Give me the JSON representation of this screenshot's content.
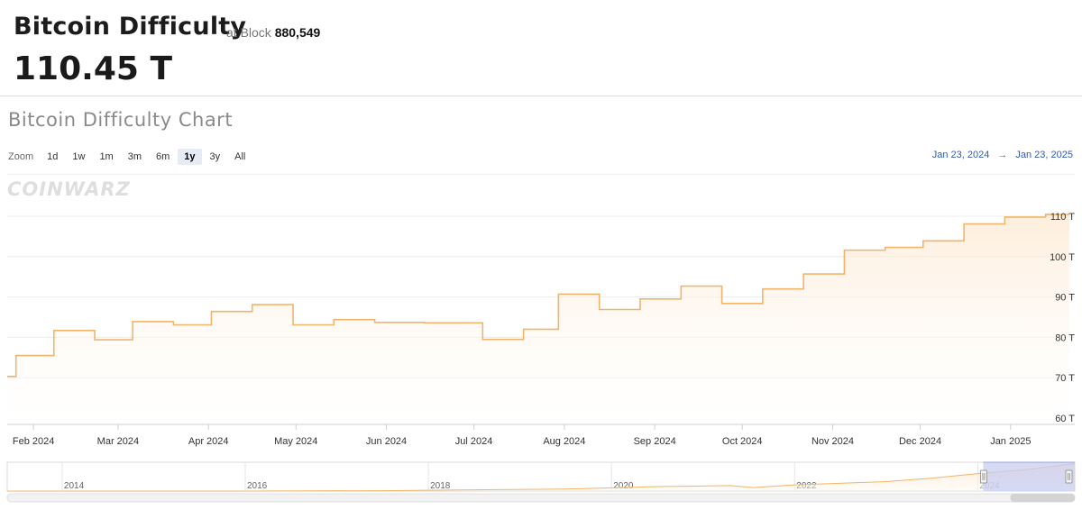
{
  "header": {
    "title": "Bitcoin Difficulty",
    "at_block_label": "at Block",
    "block_number": "880,549",
    "current_value": "110.45 T"
  },
  "chart_section": {
    "title": "Bitcoin Difficulty Chart",
    "watermark": "COINWARZ",
    "zoom": {
      "label": "Zoom",
      "options": [
        "1d",
        "1w",
        "1m",
        "3m",
        "6m",
        "1y",
        "3y",
        "All"
      ],
      "selected": "1y"
    },
    "range": {
      "from": "Jan 23, 2024",
      "arrow": "→",
      "to": "Jan 23, 2025"
    }
  },
  "colors": {
    "line": "#f0b56a",
    "area_top": "#fde8d0",
    "area_bottom": "#ffffff",
    "accent": "#335cad",
    "navigator_mask": "#c8cdf2"
  },
  "chart_data": {
    "type": "area",
    "title": "Bitcoin Difficulty Chart",
    "xlabel": "",
    "ylabel": "",
    "x_range": [
      "2024-01-23",
      "2025-01-23"
    ],
    "ylim": [
      60,
      110
    ],
    "y_ticks": [
      60,
      70,
      80,
      90,
      100,
      110
    ],
    "y_tick_labels": [
      "60 T",
      "70 T",
      "80 T",
      "90 T",
      "100 T",
      "110 T"
    ],
    "x_ticks": [
      {
        "date": "2024-02-01",
        "label": "Feb 2024"
      },
      {
        "date": "2024-03-01",
        "label": "Mar 2024"
      },
      {
        "date": "2024-04-01",
        "label": "Apr 2024"
      },
      {
        "date": "2024-05-01",
        "label": "May 2024"
      },
      {
        "date": "2024-06-01",
        "label": "Jun 2024"
      },
      {
        "date": "2024-07-01",
        "label": "Jul 2024"
      },
      {
        "date": "2024-08-01",
        "label": "Aug 2024"
      },
      {
        "date": "2024-09-01",
        "label": "Sep 2024"
      },
      {
        "date": "2024-10-01",
        "label": "Oct 2024"
      },
      {
        "date": "2024-11-01",
        "label": "Nov 2024"
      },
      {
        "date": "2024-12-01",
        "label": "Dec 2024"
      },
      {
        "date": "2025-01-01",
        "label": "Jan 2025"
      }
    ],
    "grid": true,
    "series": [
      {
        "points": [
          {
            "date": "2024-01-23",
            "value": 70.3
          },
          {
            "date": "2024-01-26",
            "value": 75.5
          },
          {
            "date": "2024-02-08",
            "value": 81.7
          },
          {
            "date": "2024-02-22",
            "value": 79.4
          },
          {
            "date": "2024-03-06",
            "value": 83.9
          },
          {
            "date": "2024-03-20",
            "value": 83.1
          },
          {
            "date": "2024-04-02",
            "value": 86.4
          },
          {
            "date": "2024-04-16",
            "value": 88.1
          },
          {
            "date": "2024-04-30",
            "value": 83.1
          },
          {
            "date": "2024-05-14",
            "value": 84.4
          },
          {
            "date": "2024-05-28",
            "value": 83.7
          },
          {
            "date": "2024-06-14",
            "value": 83.6
          },
          {
            "date": "2024-07-04",
            "value": 79.5
          },
          {
            "date": "2024-07-18",
            "value": 82.0
          },
          {
            "date": "2024-07-30",
            "value": 90.7
          },
          {
            "date": "2024-08-13",
            "value": 86.9
          },
          {
            "date": "2024-08-27",
            "value": 89.5
          },
          {
            "date": "2024-09-10",
            "value": 92.7
          },
          {
            "date": "2024-09-24",
            "value": 88.4
          },
          {
            "date": "2024-10-08",
            "value": 92.0
          },
          {
            "date": "2024-10-22",
            "value": 95.7
          },
          {
            "date": "2024-11-05",
            "value": 101.6
          },
          {
            "date": "2024-11-19",
            "value": 102.3
          },
          {
            "date": "2024-12-02",
            "value": 103.9
          },
          {
            "date": "2024-12-16",
            "value": 108.1
          },
          {
            "date": "2024-12-30",
            "value": 109.8
          },
          {
            "date": "2025-01-13",
            "value": 110.45
          }
        ]
      }
    ],
    "navigator": {
      "x_labels": [
        "2014",
        "2016",
        "2018",
        "2020",
        "2022",
        "2024"
      ],
      "points": [
        {
          "year": 2013.4,
          "value": 0.1
        },
        {
          "year": 2016.0,
          "value": 0.2
        },
        {
          "year": 2017.5,
          "value": 1.5
        },
        {
          "year": 2018.8,
          "value": 6
        },
        {
          "year": 2019.5,
          "value": 8
        },
        {
          "year": 2020.5,
          "value": 18
        },
        {
          "year": 2021.3,
          "value": 22
        },
        {
          "year": 2021.55,
          "value": 14
        },
        {
          "year": 2022.0,
          "value": 25
        },
        {
          "year": 2023.0,
          "value": 38
        },
        {
          "year": 2023.5,
          "value": 52
        },
        {
          "year": 2024.05,
          "value": 72
        },
        {
          "year": 2024.5,
          "value": 85
        },
        {
          "year": 2025.06,
          "value": 110.45
        }
      ],
      "selection": [
        2024.06,
        2025.06
      ]
    }
  }
}
